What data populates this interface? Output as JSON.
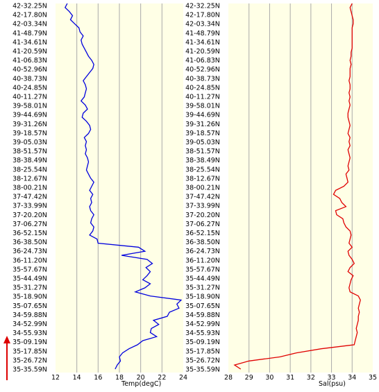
{
  "latitude_labels": [
    "42-32.25N",
    "42-17.80N",
    "42-03.34N",
    "41-48.79N",
    "41-34.61N",
    "41-20.59N",
    "41-06.83N",
    "40-52.96N",
    "40-38.73N",
    "40-24.85N",
    "40-11.27N",
    "39-58.01N",
    "39-44.69N",
    "39-31.26N",
    "39-18.57N",
    "39-05.03N",
    "38-51.57N",
    "38-38.49N",
    "38-25.54N",
    "38-12.67N",
    "38-00.21N",
    "37-47.42N",
    "37-33.99N",
    "37-20.20N",
    "37-06.27N",
    "36-52.15N",
    "36-38.50N",
    "36-24.73N",
    "36-11.20N",
    "35-57.67N",
    "35-44.49N",
    "35-31.27N",
    "35-18.90N",
    "35-07.65N",
    "34-59.88N",
    "34-52.99N",
    "34-55.93N",
    "35-09.19N",
    "35-17.85N",
    "35-26.72N",
    "35-35.59N"
  ],
  "colors": {
    "temp_line": "#0000dd",
    "sal_line": "#e00000",
    "plot_bg": "#ffffe6",
    "arrow": "#dd0000"
  },
  "chart_data": [
    {
      "type": "line",
      "orientation": "vertical-profile",
      "xlabel": "Temp(degC)",
      "xlim": [
        12,
        24
      ],
      "xticks": [
        "12",
        "14",
        "16",
        "18",
        "20",
        "22",
        "24"
      ],
      "grid": true,
      "series": [
        {
          "values": [
            13.1,
            12.9,
            13.3,
            13.6,
            13.4,
            13.8,
            14.2,
            14.3,
            14.6,
            14.4,
            14.5,
            14.7,
            14.9,
            15.1,
            15.4,
            15.6,
            15.5,
            15.2,
            14.9,
            14.6,
            14.8,
            14.9,
            14.8,
            14.7,
            14.4,
            14.8,
            15.0,
            14.6,
            14.5,
            14.9,
            15.2,
            15.3,
            15.1,
            14.7,
            14.9,
            14.8,
            14.9,
            14.8,
            15.0,
            15.1,
            15.0,
            14.9,
            15.1,
            15.3,
            15.6,
            15.4,
            15.2,
            15.5,
            15.3,
            15.4,
            15.2,
            15.3,
            15.6,
            15.4,
            15.3,
            15.6,
            15.5,
            15.2,
            15.9,
            16.0,
            19.8,
            20.4,
            18.2,
            20.6,
            21.1,
            20.5,
            20.9,
            20.6,
            20.2,
            20.9,
            20.4,
            19.5,
            20.9,
            23.8,
            23.4,
            23.6,
            22.7,
            22.5,
            21.2,
            21.7,
            21.0,
            20.9,
            21.5,
            20.2,
            19.7,
            18.9,
            18.3,
            18.0,
            18.1,
            17.8,
            17.6
          ]
        }
      ]
    },
    {
      "type": "line",
      "orientation": "vertical-profile",
      "xlabel": "Sal(psu)",
      "xlim": [
        28,
        35
      ],
      "xticks": [
        "28",
        "29",
        "30",
        "31",
        "32",
        "33",
        "34",
        "35"
      ],
      "grid": true,
      "series": [
        {
          "values": [
            34.0,
            33.9,
            33.95,
            34.0,
            34.05,
            34.05,
            34.0,
            34.0,
            34.0,
            34.0,
            34.0,
            34.0,
            33.95,
            33.95,
            33.9,
            33.95,
            33.9,
            33.9,
            33.9,
            33.85,
            33.9,
            33.9,
            33.85,
            33.9,
            33.85,
            33.9,
            33.85,
            33.8,
            33.8,
            33.85,
            33.9,
            33.85,
            33.8,
            33.9,
            33.85,
            33.9,
            33.8,
            33.85,
            33.9,
            33.85,
            33.8,
            33.85,
            33.7,
            33.75,
            33.8,
            33.6,
            33.2,
            33.1,
            33.4,
            33.5,
            33.7,
            33.2,
            33.25,
            33.55,
            33.6,
            33.7,
            33.9,
            33.95,
            33.9,
            33.85,
            34.0,
            33.8,
            33.85,
            34.0,
            34.1,
            33.9,
            33.8,
            34.05,
            33.95,
            33.9,
            33.85,
            33.9,
            34.3,
            34.4,
            34.35,
            34.3,
            34.35,
            34.3,
            34.3,
            34.25,
            34.2,
            34.25,
            34.2,
            34.15,
            34.1,
            32.5,
            31.3,
            30.5,
            29.0,
            28.3,
            28.6
          ]
        }
      ]
    }
  ]
}
